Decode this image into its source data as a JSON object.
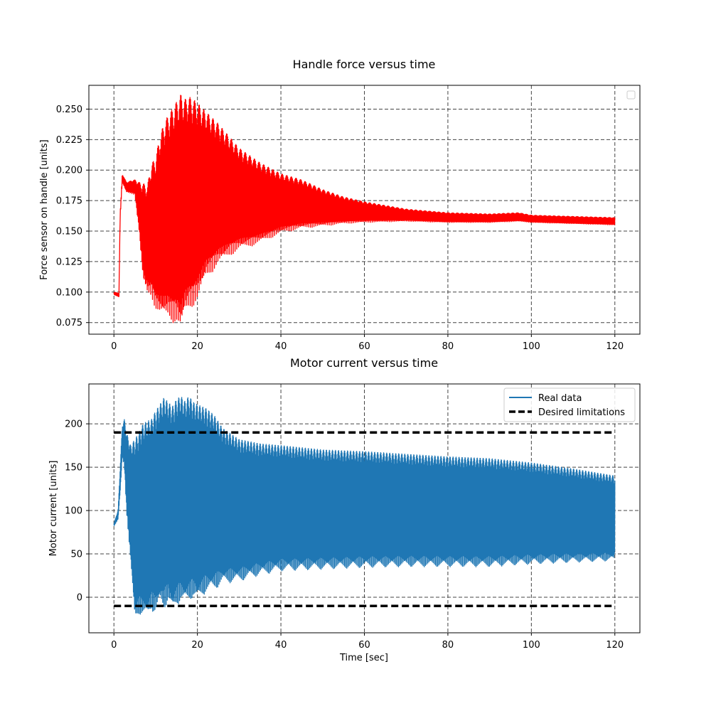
{
  "chart_data": [
    {
      "type": "line",
      "title": "Handle force versus time",
      "xlabel": "",
      "ylabel": "Force sensor on handle [units]",
      "xlim": [
        -6,
        126
      ],
      "ylim": [
        0.0655,
        0.2695
      ],
      "xticks": [
        0,
        20,
        40,
        60,
        80,
        100,
        120
      ],
      "xtick_labels": [
        "0",
        "20",
        "40",
        "60",
        "80",
        "100",
        "120"
      ],
      "yticks": [
        0.075,
        0.1,
        0.125,
        0.15,
        0.175,
        0.2,
        0.225,
        0.25
      ],
      "ytick_labels": [
        "0.075",
        "0.100",
        "0.125",
        "0.150",
        "0.175",
        "0.200",
        "0.225",
        "0.250"
      ],
      "grid": true,
      "legend": {
        "placement": "top-right",
        "entries": []
      },
      "series": [
        {
          "color": "#ff0000",
          "oscillation": true,
          "envelope": {
            "t": [
              0,
              1.2,
              1.5,
              2.0,
              3.0,
              5.0,
              6.0,
              7.0,
              8.0,
              9.0,
              10.0,
              11.0,
              12.0,
              13.0,
              14.0,
              15.0,
              16.0,
              17.0,
              18.0,
              19.0,
              20.0,
              22.0,
              25.0,
              28.0,
              30.0,
              35.0,
              40.0,
              45.0,
              50.0,
              55.0,
              60.0,
              70.0,
              80.0,
              90.0,
              97.0,
              100.0,
              110.0,
              120.0
            ],
            "upper": [
              0.1,
              0.099,
              0.165,
              0.197,
              0.19,
              0.192,
              0.19,
              0.189,
              0.187,
              0.205,
              0.21,
              0.228,
              0.238,
              0.245,
              0.25,
              0.256,
              0.262,
              0.258,
              0.26,
              0.258,
              0.255,
              0.248,
              0.238,
              0.226,
              0.218,
              0.206,
              0.197,
              0.192,
              0.184,
              0.178,
              0.174,
              0.168,
              0.165,
              0.164,
              0.165,
              0.163,
              0.162,
              0.161
            ],
            "lower": [
              0.098,
              0.096,
              0.16,
              0.19,
              0.182,
              0.18,
              0.15,
              0.108,
              0.098,
              0.096,
              0.085,
              0.08,
              0.078,
              0.078,
              0.075,
              0.074,
              0.067,
              0.08,
              0.085,
              0.088,
              0.092,
              0.11,
              0.122,
              0.13,
              0.134,
              0.14,
              0.148,
              0.152,
              0.154,
              0.156,
              0.157,
              0.158,
              0.157,
              0.157,
              0.158,
              0.157,
              0.156,
              0.155
            ]
          }
        }
      ]
    },
    {
      "type": "line",
      "title": "Motor current versus time",
      "xlabel": "Time [sec]",
      "ylabel": "Motor current [units]",
      "xlim": [
        -6,
        126
      ],
      "ylim": [
        -41,
        246
      ],
      "xticks": [
        0,
        20,
        40,
        60,
        80,
        100,
        120
      ],
      "xtick_labels": [
        "0",
        "20",
        "40",
        "60",
        "80",
        "100",
        "120"
      ],
      "yticks": [
        0,
        50,
        100,
        150,
        200
      ],
      "ytick_labels": [
        "0",
        "50",
        "100",
        "150",
        "200"
      ],
      "grid": true,
      "legend": {
        "placement": "top-right",
        "entries": [
          "Real data",
          "Desired limitations"
        ]
      },
      "series": [
        {
          "name": "Real data",
          "color": "#1f77b4",
          "oscillation": true,
          "envelope": {
            "t": [
              0,
              1.0,
              1.5,
              2.0,
              2.5,
              3.0,
              4.0,
              5.0,
              6.0,
              7.0,
              8.0,
              9.0,
              10.0,
              11.0,
              12.0,
              13.0,
              14.0,
              15.0,
              16.0,
              17.0,
              18.0,
              19.0,
              20.0,
              22.0,
              24.0,
              26.0,
              30.0,
              35.0,
              40.0,
              50.0,
              60.0,
              70.0,
              80.0,
              90.0,
              100.0,
              110.0,
              120.0
            ],
            "upper": [
              85,
              100,
              150,
              198,
              205,
              190,
              175,
              182,
              190,
              200,
              203,
              205,
              215,
              222,
              230,
              225,
              220,
              228,
              232,
              226,
              232,
              225,
              222,
              218,
              210,
              195,
              182,
              177,
              175,
              170,
              168,
              165,
              162,
              160,
              155,
              148,
              140
            ],
            "lower": [
              82,
              90,
              120,
              160,
              150,
              100,
              40,
              -28,
              -20,
              -22,
              -25,
              -15,
              -20,
              -8,
              -15,
              -5,
              -18,
              -10,
              -5,
              -8,
              -5,
              0,
              -5,
              5,
              8,
              15,
              18,
              25,
              30,
              32,
              34,
              35,
              35,
              35,
              38,
              40,
              42
            ]
          }
        },
        {
          "name": "Desired limitations",
          "color": "#000000",
          "dashed": true,
          "x": [
            0,
            120
          ],
          "y_upper": [
            190,
            190
          ],
          "y_lower": [
            -10,
            -10
          ]
        }
      ]
    }
  ]
}
